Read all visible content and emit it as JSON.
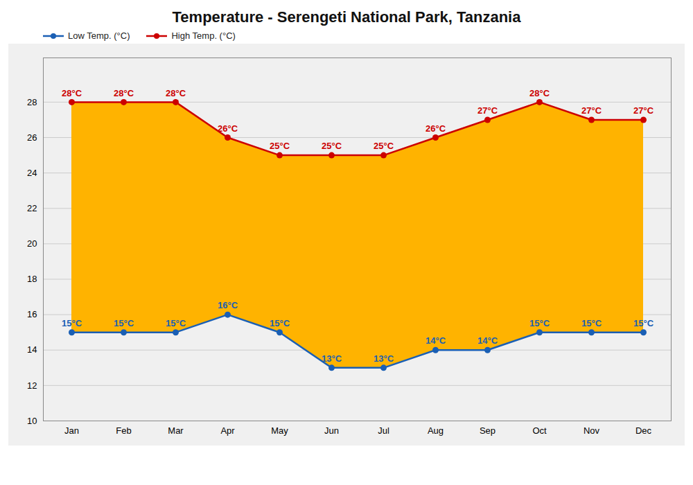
{
  "chart_data": {
    "type": "line",
    "title": "Temperature - Serengeti National Park, Tanzania",
    "categories": [
      "Jan",
      "Feb",
      "Mar",
      "Apr",
      "May",
      "Jun",
      "Jul",
      "Aug",
      "Sep",
      "Oct",
      "Nov",
      "Dec"
    ],
    "series": [
      {
        "name": "Low Temp. (°C)",
        "color": "#1a5fb4",
        "marker": "o",
        "values": [
          15,
          15,
          15,
          16,
          15,
          13,
          13,
          14,
          14,
          15,
          15,
          15
        ],
        "value_labels": [
          "15°C",
          "15°C",
          "15°C",
          "16°C",
          "15°C",
          "13°C",
          "13°C",
          "14°C",
          "14°C",
          "15°C",
          "15°C",
          "15°C"
        ]
      },
      {
        "name": "High Temp. (°C)",
        "color": "#CC0000",
        "marker": "o",
        "values": [
          28,
          28,
          28,
          26,
          25,
          25,
          25,
          26,
          27,
          28,
          27,
          27
        ],
        "value_labels": [
          "28°C",
          "28°C",
          "28°C",
          "26°C",
          "25°C",
          "25°C",
          "25°C",
          "26°C",
          "27°C",
          "28°C",
          "27°C",
          "27°C"
        ]
      }
    ],
    "color": "#FFB300",
    "ylim": [
      10,
      30.5
    ],
    "yticks": [
      10,
      12,
      14,
      16,
      18,
      20,
      22,
      24,
      26,
      28
    ],
    "grid": true,
    "legend": "top",
    "data_labels": true
  }
}
